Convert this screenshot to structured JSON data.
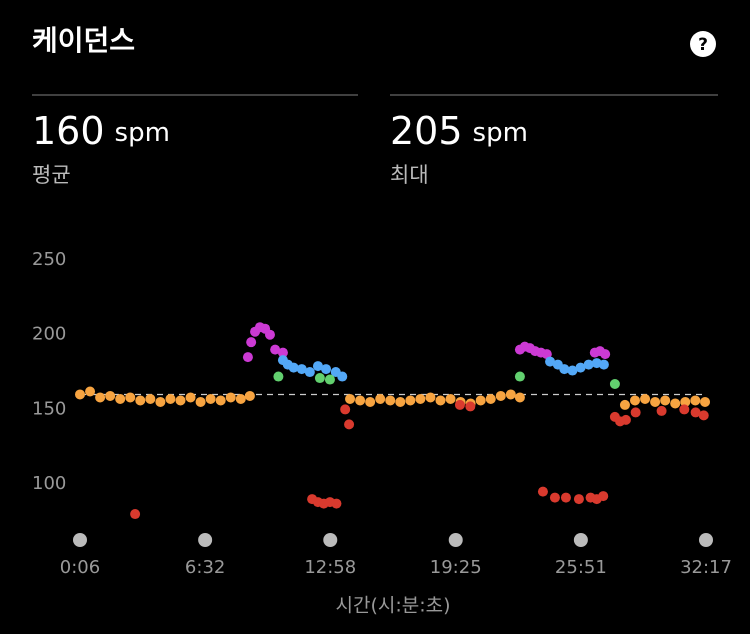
{
  "title": "케이던스",
  "help_icon": "?",
  "stats": [
    {
      "value": 160,
      "unit": "spm",
      "label": "평균"
    },
    {
      "value": 205,
      "unit": "spm",
      "label": "최대"
    }
  ],
  "chart_data": {
    "type": "scatter",
    "x_label": "시간(시:분:초)",
    "xlim": [
      6,
      1937
    ],
    "xticks": [
      {
        "value": 6,
        "label": "0:06"
      },
      {
        "value": 392,
        "label": "6:32"
      },
      {
        "value": 778,
        "label": "12:58"
      },
      {
        "value": 1165,
        "label": "19:25"
      },
      {
        "value": 1551,
        "label": "25:51"
      },
      {
        "value": 1937,
        "label": "32:17"
      }
    ],
    "ylim": [
      75,
      255
    ],
    "yticks": [
      100,
      150,
      200,
      250
    ],
    "series": [
      {
        "color": "#f7a441",
        "x": [
          6,
          37,
          68,
          99,
          130,
          161,
          192,
          223,
          254,
          285,
          316,
          347,
          378,
          409,
          440,
          471,
          502,
          530,
          839,
          870,
          901,
          932,
          963,
          994,
          1025,
          1056,
          1087,
          1118,
          1149,
          1180,
          1211,
          1242,
          1273,
          1304,
          1335,
          1363,
          1687,
          1718,
          1749,
          1780,
          1811,
          1842,
          1873,
          1904,
          1934
        ],
        "values": [
          160,
          162,
          158,
          159,
          157,
          158,
          156,
          157,
          155,
          157,
          156,
          158,
          155,
          157,
          156,
          158,
          157,
          159,
          157,
          156,
          155,
          157,
          156,
          155,
          156,
          157,
          158,
          156,
          157,
          155,
          154,
          156,
          157,
          159,
          160,
          158,
          153,
          156,
          157,
          155,
          156,
          154,
          155,
          156,
          155
        ]
      },
      {
        "color": "#d93a2e",
        "x": [
          176,
          722,
          740,
          758,
          777,
          797,
          824,
          836,
          1178,
          1210,
          1434,
          1471,
          1505,
          1545,
          1581,
          1600,
          1620,
          1656,
          1672,
          1690,
          1720,
          1800,
          1870,
          1905,
          1930
        ],
        "values": [
          80,
          90,
          88,
          87,
          88,
          87,
          150,
          140,
          153,
          152,
          95,
          91,
          91,
          90,
          91,
          90,
          92,
          145,
          142,
          143,
          148,
          149,
          150,
          148,
          146
        ]
      },
      {
        "color": "#cc3ad4",
        "x": [
          524,
          534,
          546,
          561,
          577,
          592,
          608,
          632,
          1363,
          1378,
          1394,
          1410,
          1428,
          1446,
          1594,
          1610,
          1626
        ],
        "values": [
          185,
          195,
          202,
          205,
          204,
          200,
          190,
          188,
          190,
          192,
          191,
          189,
          188,
          187,
          188,
          189,
          187
        ]
      },
      {
        "color": "#53a8f7",
        "x": [
          632,
          647,
          665,
          690,
          715,
          740,
          765,
          795,
          815,
          1456,
          1480,
          1500,
          1525,
          1550,
          1575,
          1600,
          1622
        ],
        "values": [
          183,
          180,
          178,
          177,
          175,
          179,
          177,
          175,
          172,
          182,
          180,
          177,
          176,
          178,
          180,
          181,
          180
        ]
      },
      {
        "color": "#62d06f",
        "x": [
          618,
          746,
          777,
          1363,
          1656
        ],
        "values": [
          172,
          171,
          170,
          172,
          167
        ]
      }
    ]
  }
}
